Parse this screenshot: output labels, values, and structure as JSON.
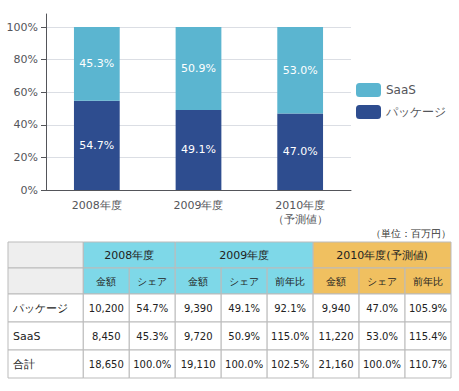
{
  "chart_data": [
    {
      "type": "bar",
      "stacked": true,
      "categories": [
        "2008年度",
        "2009年度",
        "2010年度\n（予測値）"
      ],
      "series": [
        {
          "name": "パッケージ",
          "color": "#2E4D8F",
          "values": [
            54.7,
            49.1,
            47.0
          ],
          "value_labels": [
            "54.7%",
            "49.1%",
            "47.0%"
          ]
        },
        {
          "name": "SaaS",
          "color": "#5BB5D0",
          "values": [
            45.3,
            50.9,
            53.0
          ],
          "value_labels": [
            "45.3%",
            "50.9%",
            "53.0%"
          ]
        }
      ],
      "ylim": [
        0,
        108
      ],
      "yticks": [
        {
          "value": 0,
          "label": "0%"
        },
        {
          "value": 20,
          "label": "20%"
        },
        {
          "value": 40,
          "label": "40%"
        },
        {
          "value": 60,
          "label": "60%"
        },
        {
          "value": 80,
          "label": "80%"
        },
        {
          "value": 100,
          "label": "100%"
        }
      ],
      "grid": true,
      "legend": "right",
      "data_labels": true
    },
    {
      "type": "table",
      "title": "（単位：百万円）",
      "header_groups": [
        {
          "label": "2008年度",
          "color": "#7ED8E8",
          "columns": [
            "金額",
            "シェア"
          ]
        },
        {
          "label": "2009年度",
          "color": "#7ED8E8",
          "columns": [
            "金額",
            "シェア",
            "前年比"
          ]
        },
        {
          "label": "2010年度(予測値)",
          "color": "#F0C060",
          "columns": [
            "金額",
            "シェア",
            "前年比"
          ]
        }
      ],
      "row_labels": [
        "パッケージ",
        "SaaS",
        "合計"
      ],
      "rows": [
        [
          "10,200",
          "54.7%",
          "9,390",
          "49.1%",
          "92.1%",
          "9,940",
          "47.0%",
          "105.9%"
        ],
        [
          "8,450",
          "45.3%",
          "9,720",
          "50.9%",
          "115.0%",
          "11,220",
          "53.0%",
          "115.4%"
        ],
        [
          "18,650",
          "100.0%",
          "19,110",
          "100.0%",
          "102.5%",
          "21,160",
          "100.0%",
          "110.7%"
        ]
      ]
    }
  ]
}
